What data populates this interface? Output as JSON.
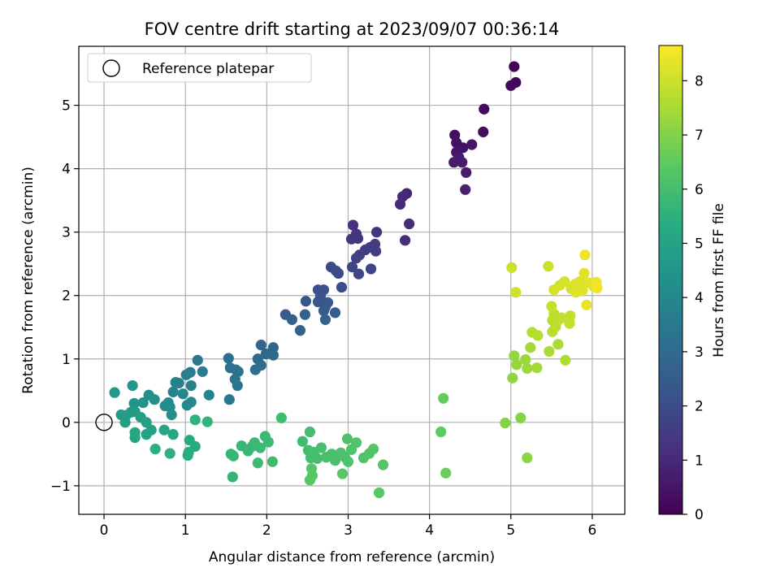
{
  "chart_data": {
    "type": "scatter",
    "title": "FOV centre drift starting at 2023/09/07 00:36:14",
    "xlabel": "Angular distance from reference (arcmin)",
    "ylabel": "Rotation from reference (arcmin)",
    "xlim": [
      -0.31,
      6.4
    ],
    "ylim": [
      -1.45,
      5.93
    ],
    "xticks": [
      0,
      1,
      2,
      3,
      4,
      5,
      6
    ],
    "yticks": [
      -1,
      0,
      1,
      2,
      3,
      4,
      5
    ],
    "xtick_labels": [
      "0",
      "1",
      "2",
      "3",
      "4",
      "5",
      "6"
    ],
    "ytick_labels": [
      "−1",
      "0",
      "1",
      "2",
      "3",
      "4",
      "5"
    ],
    "grid": true,
    "legend": {
      "position": "top-left",
      "entries": [
        "Reference platepar"
      ]
    },
    "reference": {
      "label": "Reference platepar",
      "x": 0,
      "y": 0,
      "marker": "open-circle"
    },
    "colorbar": {
      "label": "Hours from first FF file",
      "colormap": "viridis",
      "range": [
        0,
        8.65
      ],
      "ticks": [
        0,
        1,
        2,
        3,
        4,
        5,
        6,
        7,
        8
      ],
      "tick_labels": [
        "0",
        "1",
        "2",
        "3",
        "4",
        "5",
        "6",
        "7",
        "8"
      ]
    },
    "series": [
      {
        "marker": "filled-circle",
        "points": [
          [
            5.04,
            5.61,
            0.1
          ],
          [
            5.06,
            5.36,
            0.15
          ],
          [
            5.0,
            5.31,
            0.2
          ],
          [
            4.67,
            4.94,
            0.25
          ],
          [
            4.66,
            4.58,
            0.3
          ],
          [
            4.31,
            4.53,
            0.35
          ],
          [
            4.33,
            4.41,
            0.4
          ],
          [
            4.41,
            4.33,
            0.45
          ],
          [
            4.52,
            4.38,
            0.5
          ],
          [
            4.33,
            4.26,
            0.55
          ],
          [
            4.36,
            4.18,
            0.6
          ],
          [
            4.3,
            4.1,
            0.65
          ],
          [
            4.4,
            4.1,
            0.7
          ],
          [
            4.45,
            3.94,
            0.75
          ],
          [
            4.44,
            3.67,
            0.8
          ],
          [
            3.72,
            3.61,
            0.9
          ],
          [
            3.67,
            3.56,
            0.95
          ],
          [
            3.64,
            3.44,
            1.0
          ],
          [
            3.75,
            3.13,
            1.05
          ],
          [
            3.7,
            2.87,
            1.1
          ],
          [
            3.06,
            3.11,
            1.2
          ],
          [
            3.35,
            3.0,
            1.25
          ],
          [
            3.1,
            2.97,
            1.3
          ],
          [
            3.12,
            2.9,
            1.35
          ],
          [
            3.04,
            2.89,
            1.4
          ],
          [
            3.33,
            2.81,
            1.45
          ],
          [
            3.27,
            2.76,
            1.5
          ],
          [
            3.21,
            2.72,
            1.55
          ],
          [
            3.34,
            2.7,
            1.6
          ],
          [
            3.14,
            2.64,
            1.65
          ],
          [
            3.1,
            2.59,
            1.7
          ],
          [
            3.05,
            2.45,
            1.75
          ],
          [
            3.28,
            2.42,
            1.8
          ],
          [
            3.13,
            2.34,
            1.85
          ],
          [
            2.79,
            2.45,
            1.9
          ],
          [
            2.85,
            2.39,
            1.95
          ],
          [
            2.88,
            2.35,
            2.0
          ],
          [
            2.92,
            2.13,
            2.05
          ],
          [
            2.7,
            2.09,
            2.1
          ],
          [
            2.63,
            2.09,
            2.15
          ],
          [
            2.66,
            1.99,
            2.2
          ],
          [
            2.63,
            1.9,
            2.25
          ],
          [
            2.48,
            1.91,
            2.3
          ],
          [
            2.75,
            1.89,
            2.35
          ],
          [
            2.72,
            1.82,
            2.4
          ],
          [
            2.7,
            1.76,
            2.45
          ],
          [
            2.84,
            1.73,
            2.5
          ],
          [
            2.23,
            1.7,
            2.55
          ],
          [
            2.31,
            1.62,
            2.6
          ],
          [
            2.47,
            1.7,
            2.65
          ],
          [
            2.72,
            1.62,
            2.7
          ],
          [
            2.41,
            1.45,
            2.75
          ],
          [
            1.93,
            1.22,
            2.8
          ],
          [
            2.08,
            1.18,
            2.85
          ],
          [
            1.99,
            1.08,
            2.9
          ],
          [
            2.08,
            1.06,
            2.95
          ],
          [
            1.89,
            1.0,
            3.0
          ],
          [
            1.93,
            0.9,
            3.05
          ],
          [
            1.86,
            0.83,
            3.1
          ],
          [
            1.53,
            1.01,
            3.15
          ],
          [
            1.55,
            0.86,
            3.2
          ],
          [
            1.62,
            0.83,
            3.25
          ],
          [
            1.65,
            0.8,
            3.3
          ],
          [
            1.61,
            0.68,
            3.35
          ],
          [
            1.64,
            0.58,
            3.4
          ],
          [
            1.54,
            0.36,
            3.45
          ],
          [
            1.15,
            0.98,
            3.5
          ],
          [
            1.21,
            0.8,
            3.55
          ],
          [
            1.06,
            0.79,
            3.6
          ],
          [
            1.01,
            0.75,
            3.65
          ],
          [
            0.88,
            0.63,
            3.7
          ],
          [
            0.92,
            0.62,
            3.75
          ],
          [
            1.07,
            0.58,
            3.8
          ],
          [
            0.85,
            0.48,
            3.85
          ],
          [
            1.29,
            0.43,
            3.9
          ],
          [
            0.97,
            0.45,
            3.95
          ],
          [
            1.07,
            0.32,
            4.0
          ],
          [
            1.02,
            0.27,
            4.05
          ],
          [
            0.79,
            0.31,
            4.1
          ],
          [
            0.75,
            0.26,
            4.15
          ],
          [
            0.81,
            0.24,
            4.2
          ],
          [
            0.83,
            0.12,
            4.25
          ],
          [
            0.55,
            0.43,
            4.3
          ],
          [
            0.62,
            0.36,
            4.35
          ],
          [
            0.48,
            0.31,
            4.4
          ],
          [
            0.37,
            0.3,
            4.45
          ],
          [
            0.35,
            0.58,
            4.5
          ],
          [
            0.13,
            0.47,
            4.55
          ],
          [
            0.38,
            0.17,
            4.6
          ],
          [
            0.33,
            0.16,
            4.65
          ],
          [
            0.21,
            0.12,
            4.7
          ],
          [
            0.27,
            0.11,
            4.75
          ],
          [
            0.45,
            0.08,
            4.8
          ],
          [
            0.26,
            0.0,
            4.85
          ],
          [
            0.52,
            -0.0,
            4.9
          ],
          [
            0.58,
            -0.12,
            4.95
          ],
          [
            0.52,
            -0.19,
            5.0
          ],
          [
            0.38,
            -0.24,
            5.05
          ],
          [
            0.38,
            -0.16,
            5.1
          ],
          [
            0.74,
            -0.12,
            5.15
          ],
          [
            0.85,
            -0.19,
            5.2
          ],
          [
            1.05,
            -0.28,
            5.25
          ],
          [
            1.12,
            -0.38,
            5.3
          ],
          [
            1.04,
            -0.47,
            5.35
          ],
          [
            1.03,
            -0.52,
            5.4
          ],
          [
            0.63,
            -0.42,
            5.45
          ],
          [
            0.81,
            -0.49,
            5.5
          ],
          [
            1.12,
            0.04,
            5.55
          ],
          [
            1.27,
            0.01,
            5.6
          ],
          [
            1.56,
            -0.5,
            5.65
          ],
          [
            1.59,
            -0.53,
            5.68
          ],
          [
            1.58,
            -0.86,
            5.7
          ],
          [
            1.69,
            -0.37,
            5.72
          ],
          [
            1.77,
            -0.45,
            5.74
          ],
          [
            1.82,
            -0.38,
            5.76
          ],
          [
            1.85,
            -0.32,
            5.78
          ],
          [
            1.92,
            -0.4,
            5.8
          ],
          [
            1.98,
            -0.22,
            5.82
          ],
          [
            2.02,
            -0.31,
            5.84
          ],
          [
            1.89,
            -0.64,
            5.86
          ],
          [
            2.07,
            -0.62,
            5.88
          ],
          [
            2.18,
            0.07,
            5.9
          ],
          [
            2.44,
            -0.3,
            5.92
          ],
          [
            2.51,
            -0.44,
            5.94
          ],
          [
            2.53,
            -0.15,
            5.96
          ],
          [
            2.54,
            -0.56,
            5.98
          ],
          [
            2.58,
            -0.47,
            6.0
          ],
          [
            2.62,
            -0.57,
            6.02
          ],
          [
            2.67,
            -0.4,
            6.04
          ],
          [
            2.73,
            -0.55,
            6.06
          ],
          [
            2.8,
            -0.5,
            6.08
          ],
          [
            2.84,
            -0.6,
            6.1
          ],
          [
            2.91,
            -0.48,
            6.12
          ],
          [
            2.96,
            -0.55,
            6.14
          ],
          [
            3.0,
            -0.62,
            6.16
          ],
          [
            2.99,
            -0.26,
            6.18
          ],
          [
            3.04,
            -0.43,
            6.2
          ],
          [
            3.1,
            -0.32,
            6.22
          ],
          [
            3.19,
            -0.56,
            6.24
          ],
          [
            3.26,
            -0.49,
            6.26
          ],
          [
            3.31,
            -0.42,
            6.28
          ],
          [
            3.43,
            -0.67,
            6.3
          ],
          [
            2.55,
            -0.73,
            6.32
          ],
          [
            2.56,
            -0.84,
            6.34
          ],
          [
            2.53,
            -0.91,
            6.36
          ],
          [
            2.93,
            -0.81,
            6.38
          ],
          [
            3.38,
            -1.11,
            6.4
          ],
          [
            4.14,
            -0.15,
            6.5
          ],
          [
            4.17,
            0.38,
            6.6
          ],
          [
            4.2,
            -0.8,
            6.65
          ],
          [
            4.93,
            -0.01,
            7.0
          ],
          [
            5.12,
            0.07,
            7.05
          ],
          [
            5.2,
            -0.56,
            7.1
          ],
          [
            5.02,
            0.7,
            7.15
          ],
          [
            5.04,
            1.05,
            7.2
          ],
          [
            5.07,
            0.91,
            7.25
          ],
          [
            5.18,
            0.99,
            7.3
          ],
          [
            5.2,
            0.85,
            7.35
          ],
          [
            5.32,
            0.86,
            7.4
          ],
          [
            5.24,
            1.18,
            7.45
          ],
          [
            5.47,
            1.12,
            7.5
          ],
          [
            5.58,
            1.23,
            7.55
          ],
          [
            5.67,
            0.98,
            7.6
          ],
          [
            5.26,
            1.42,
            7.65
          ],
          [
            5.33,
            1.37,
            7.7
          ],
          [
            5.51,
            1.43,
            7.72
          ],
          [
            5.55,
            1.51,
            7.74
          ],
          [
            5.51,
            1.61,
            7.76
          ],
          [
            5.59,
            1.62,
            7.78
          ],
          [
            5.53,
            1.71,
            7.8
          ],
          [
            5.62,
            1.65,
            7.82
          ],
          [
            5.72,
            1.58,
            7.84
          ],
          [
            5.73,
            1.68,
            7.86
          ],
          [
            5.72,
            1.56,
            7.88
          ],
          [
            5.5,
            1.83,
            7.9
          ],
          [
            5.46,
            2.46,
            7.95
          ],
          [
            5.01,
            2.44,
            8.0
          ],
          [
            5.06,
            2.05,
            8.05
          ],
          [
            5.53,
            2.09,
            8.1
          ],
          [
            5.6,
            2.16,
            8.12
          ],
          [
            5.66,
            2.22,
            8.14
          ],
          [
            5.74,
            2.11,
            8.16
          ],
          [
            5.79,
            2.18,
            8.18
          ],
          [
            5.85,
            2.22,
            8.2
          ],
          [
            5.8,
            2.05,
            8.22
          ],
          [
            5.88,
            2.08,
            8.24
          ],
          [
            5.9,
            2.35,
            8.26
          ],
          [
            5.96,
            2.2,
            8.28
          ],
          [
            6.02,
            2.14,
            8.3
          ],
          [
            5.93,
            1.85,
            8.35
          ],
          [
            5.91,
            2.64,
            8.4
          ],
          [
            6.06,
            2.12,
            8.45
          ],
          [
            6.05,
            2.21,
            8.5
          ]
        ]
      }
    ]
  }
}
